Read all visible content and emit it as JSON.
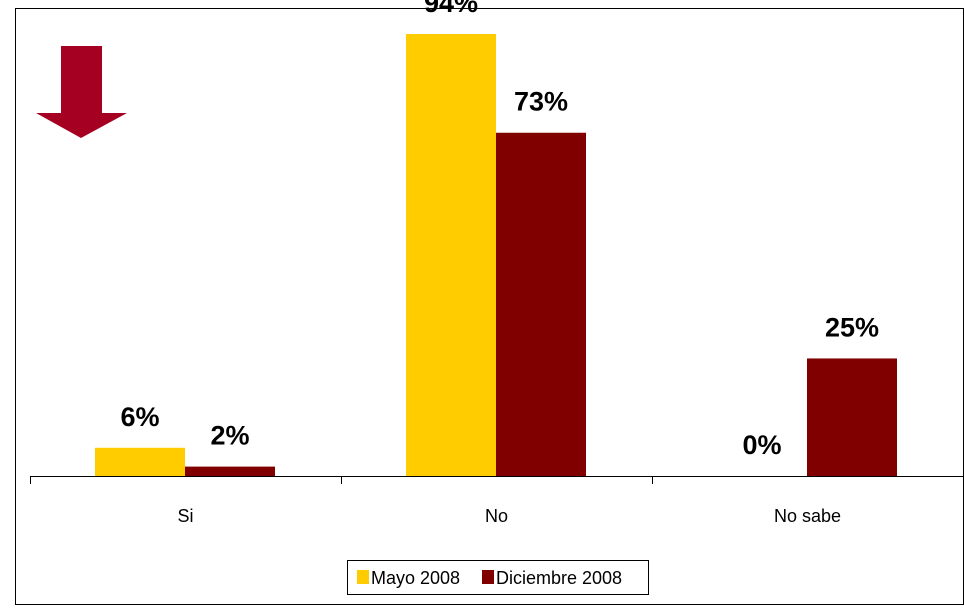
{
  "chart_data": {
    "type": "bar",
    "categories": [
      "Si",
      "No",
      "No sabe"
    ],
    "series": [
      {
        "name": "Mayo 2008",
        "values": [
          6,
          94,
          0
        ],
        "labels": [
          "6%",
          "94%",
          "0%"
        ],
        "color": "#FFCC00"
      },
      {
        "name": "Diciembre 2008",
        "values": [
          2,
          73,
          25
        ],
        "labels": [
          "2%",
          "73%",
          "25%"
        ],
        "color": "#800000"
      }
    ],
    "ylim": [
      0,
      94
    ],
    "grid": false,
    "legend": "bottom",
    "title": "",
    "xlabel": "",
    "ylabel": ""
  },
  "decoration": {
    "arrow_icon": "arrow-down-icon",
    "arrow_color": "#A50021"
  }
}
